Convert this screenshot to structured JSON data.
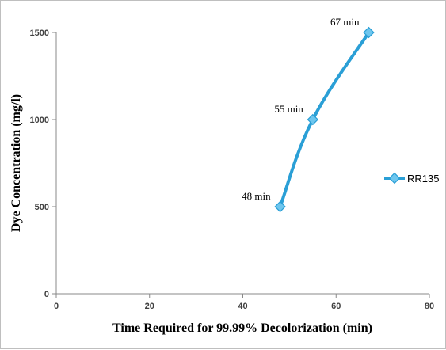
{
  "chart_data": {
    "type": "line",
    "xlabel": "Time Required for 99.99% Decolorization  (min)",
    "ylabel": "Dye Concentration  (mg/l)",
    "xlim": [
      0,
      80
    ],
    "ylim": [
      0,
      1500
    ],
    "x_ticks": [
      "0",
      "20",
      "40",
      "60",
      "80"
    ],
    "y_ticks": [
      "0",
      "500",
      "1000",
      "1500"
    ],
    "grid": false,
    "legend_position": "right",
    "series": [
      {
        "name": "RR135",
        "color": "#2a9fd6",
        "marker_color": "#6ec6ee",
        "x": [
          48,
          55,
          67
        ],
        "y": [
          500,
          1000,
          1500
        ],
        "labels": [
          "48 min",
          "55 min",
          "67 min"
        ]
      }
    ]
  }
}
